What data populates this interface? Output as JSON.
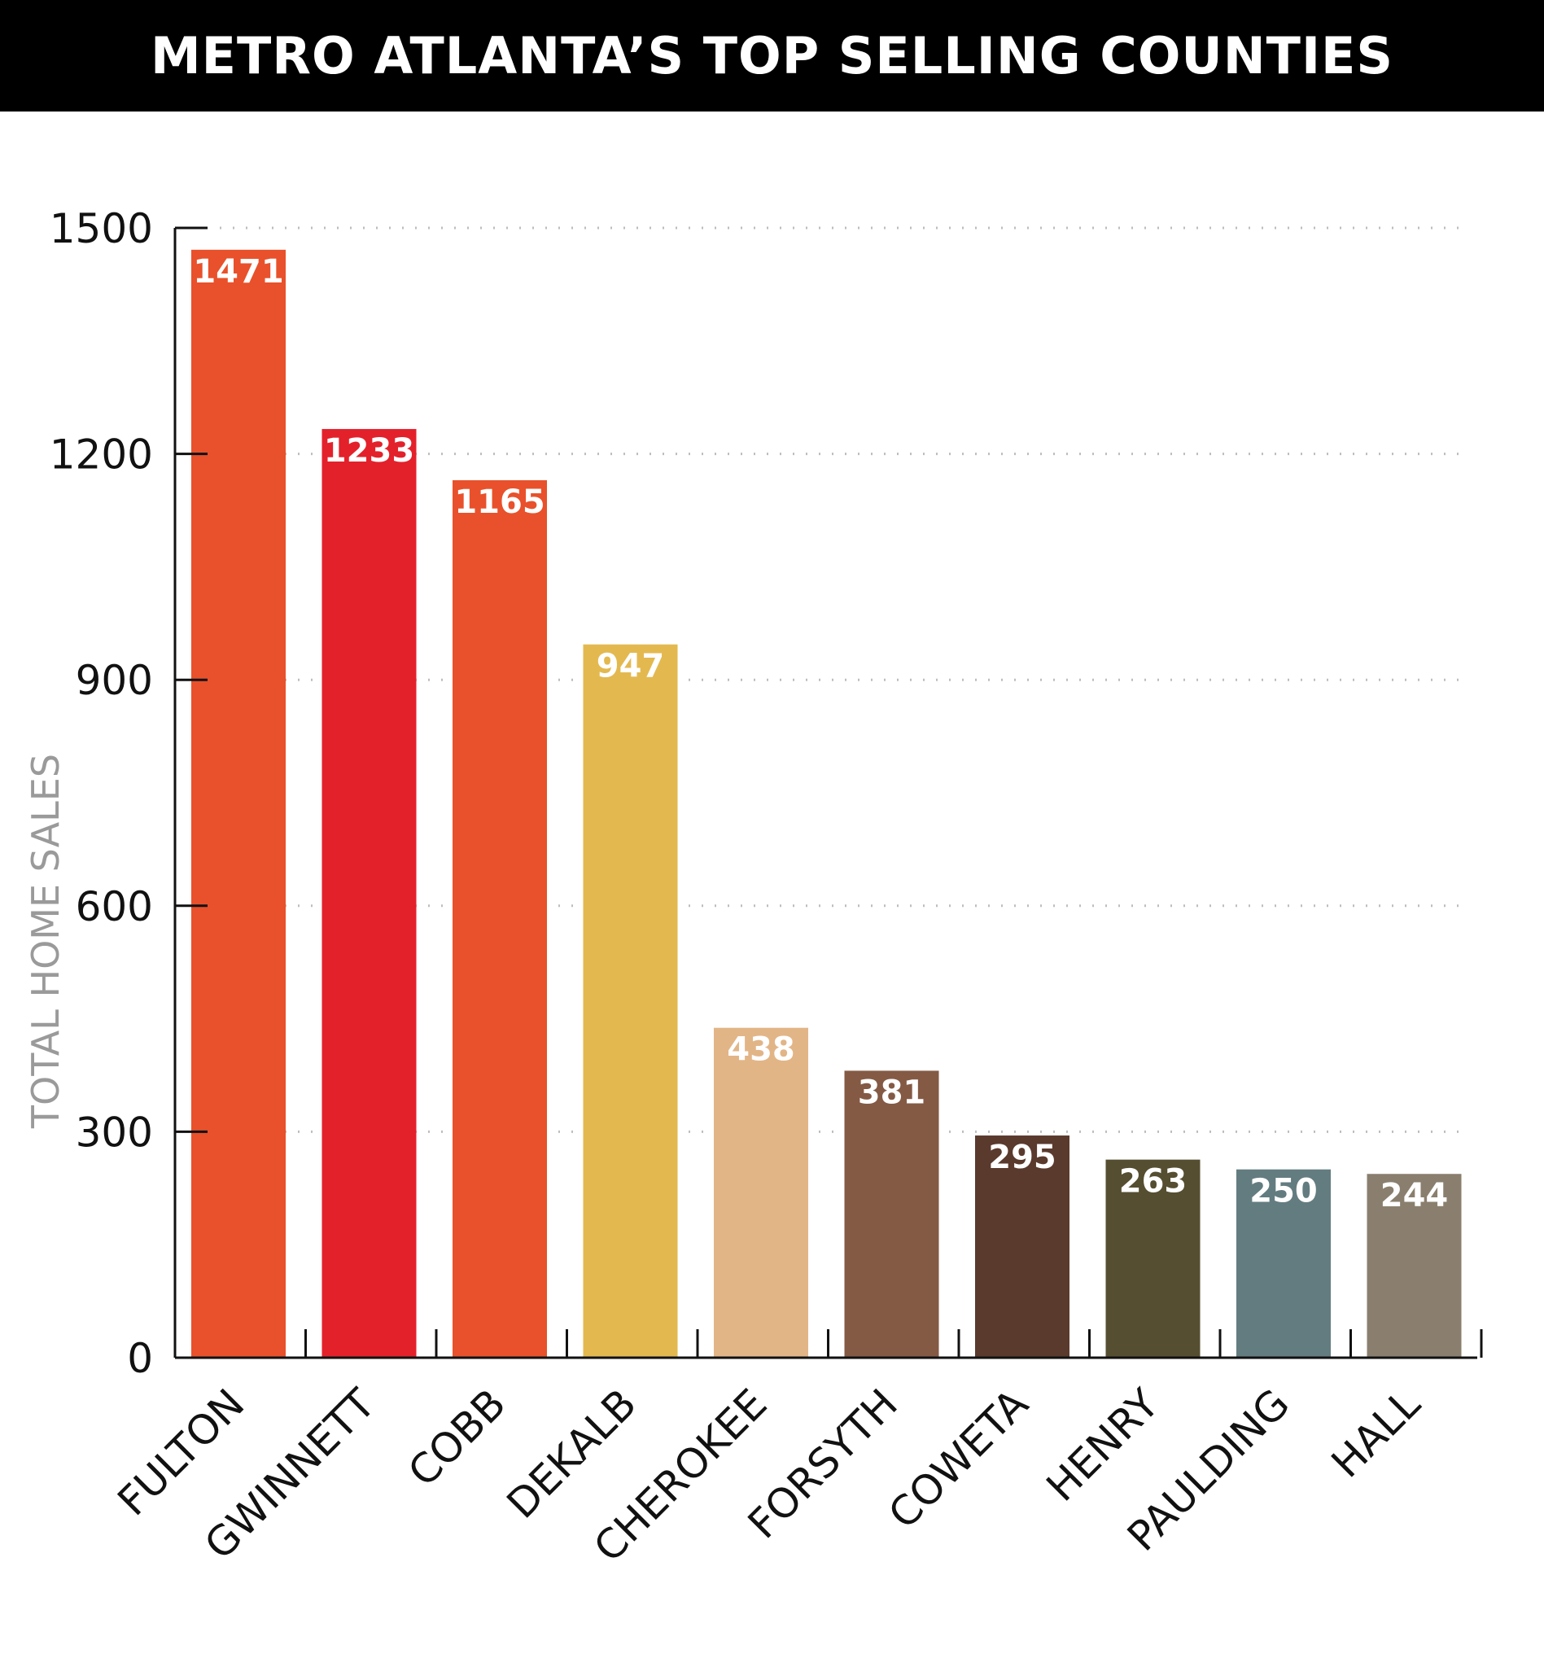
{
  "chart_data": {
    "type": "bar",
    "title": "METRO ATLANTA’S TOP SELLING COUNTIES",
    "ylabel": "TOTAL HOME SALES",
    "xlabel": "",
    "ylim": [
      0,
      1500
    ],
    "yticks": [
      0,
      300,
      600,
      900,
      1200,
      1500
    ],
    "grid": true,
    "categories": [
      "FULTON",
      "GWINNETT",
      "COBB",
      "DEKALB",
      "CHEROKEE",
      "FORSYTH",
      "COWETA",
      "HENRY",
      "PAULDING",
      "HALL"
    ],
    "values": [
      1471,
      1233,
      1165,
      947,
      438,
      381,
      295,
      263,
      250,
      244
    ],
    "colors": [
      "#E8512B",
      "#E3212B",
      "#E8512B",
      "#E3B94F",
      "#E2B587",
      "#845A45",
      "#5A3A2D",
      "#564E31",
      "#637C80",
      "#8A7F6E"
    ]
  }
}
